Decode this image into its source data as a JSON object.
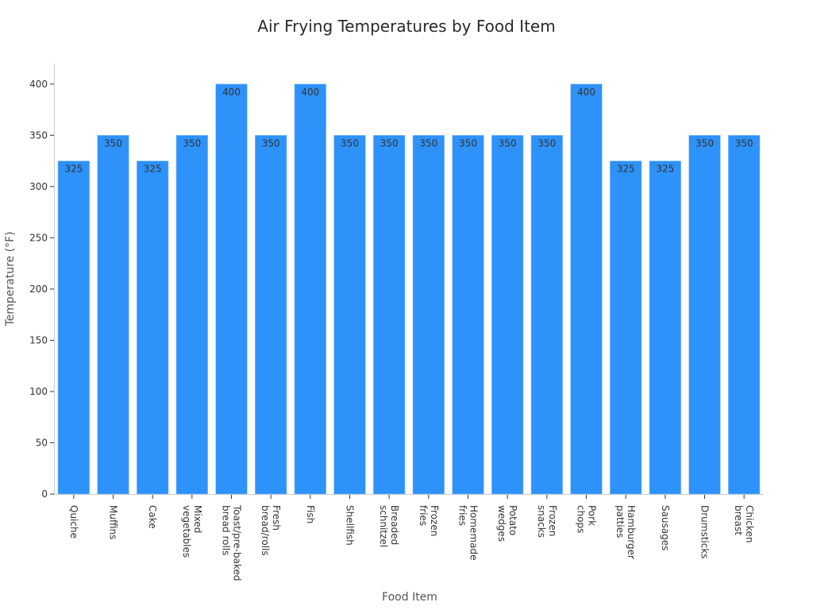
{
  "chart_data": {
    "type": "bar",
    "title": "Air Frying Temperatures by Food Item",
    "xlabel": "Food Item",
    "ylabel": "Temperature (°F)",
    "ylim": [
      0,
      420
    ],
    "yticks": [
      0,
      50,
      100,
      150,
      200,
      250,
      300,
      350,
      400
    ],
    "grid": false,
    "bar_color": "#2d92f9",
    "categories": [
      [
        "Quiche"
      ],
      [
        "Muffins"
      ],
      [
        "Cake"
      ],
      [
        "Mixed",
        "vegetables"
      ],
      [
        "Toast/pre-baked",
        "bread rolls"
      ],
      [
        "Fresh",
        "bread/rolls"
      ],
      [
        "Fish"
      ],
      [
        "Shellfish"
      ],
      [
        "Breaded",
        "schnitzel"
      ],
      [
        "Frozen",
        "fries"
      ],
      [
        "Homemade",
        "fries"
      ],
      [
        "Potato",
        "wedges"
      ],
      [
        "Frozen",
        "snacks"
      ],
      [
        "Pork",
        "chops"
      ],
      [
        "Hamburger",
        "patties"
      ],
      [
        "Sausages"
      ],
      [
        "Drumsticks"
      ],
      [
        "Chicken",
        "breast"
      ]
    ],
    "values": [
      325,
      350,
      325,
      350,
      400,
      350,
      400,
      350,
      350,
      350,
      350,
      350,
      350,
      400,
      325,
      325,
      350,
      350
    ]
  }
}
